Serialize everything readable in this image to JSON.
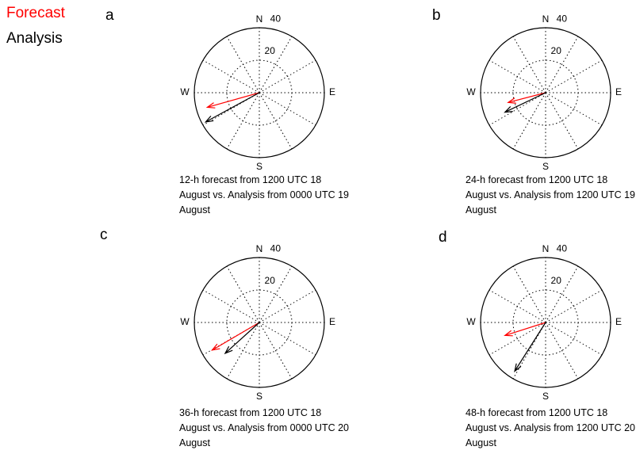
{
  "chart_data": [
    {
      "type": "compass",
      "label": "a",
      "caption": "12-h forecast from 1200 UTC 18 August vs. Analysis from 0000 UTC 19 August",
      "directions": [
        "N",
        "E",
        "S",
        "W"
      ],
      "rlim": [
        0,
        40
      ],
      "rticks": [
        20,
        40
      ],
      "series": [
        {
          "name": "Forecast",
          "color": "#ff0000",
          "values": [
            -32,
            -9
          ]
        },
        {
          "name": "Analysis",
          "color": "#000000",
          "values": [
            -33,
            -18
          ]
        }
      ]
    },
    {
      "type": "compass",
      "label": "b",
      "caption": "24-h forecast from 1200 UTC 18 August vs. Analysis from 1200 UTC 19 August",
      "directions": [
        "N",
        "E",
        "S",
        "W"
      ],
      "rlim": [
        0,
        40
      ],
      "rticks": [
        20,
        40
      ],
      "series": [
        {
          "color": "#ff0000",
          "values": [
            -23,
            -6
          ]
        },
        {
          "color": "#000000",
          "values": [
            -25,
            -12
          ]
        }
      ]
    },
    {
      "type": "compass",
      "label": "c",
      "caption": "36-h forecast from 1200 UTC 18 August vs. Analysis from 0000 UTC 20 August",
      "directions": [
        "N",
        "E",
        "S",
        "W"
      ],
      "rlim": [
        0,
        40
      ],
      "rticks": [
        20,
        40
      ],
      "series": [
        {
          "color": "#ff0000",
          "values": [
            -29,
            -17
          ]
        },
        {
          "color": "#000000",
          "values": [
            -21,
            -19
          ]
        }
      ]
    },
    {
      "type": "compass",
      "label": "d",
      "caption": "48-h forecast from 1200 UTC 18 August vs. Analysis from 1200 UTC 20 August",
      "directions": [
        "N",
        "E",
        "S",
        "W"
      ],
      "rlim": [
        0,
        40
      ],
      "rticks": [
        20,
        40
      ],
      "series": [
        {
          "color": "#ff0000",
          "values": [
            -25,
            -8
          ]
        },
        {
          "color": "#000000",
          "values": [
            -19,
            -30
          ]
        }
      ]
    }
  ]
}
